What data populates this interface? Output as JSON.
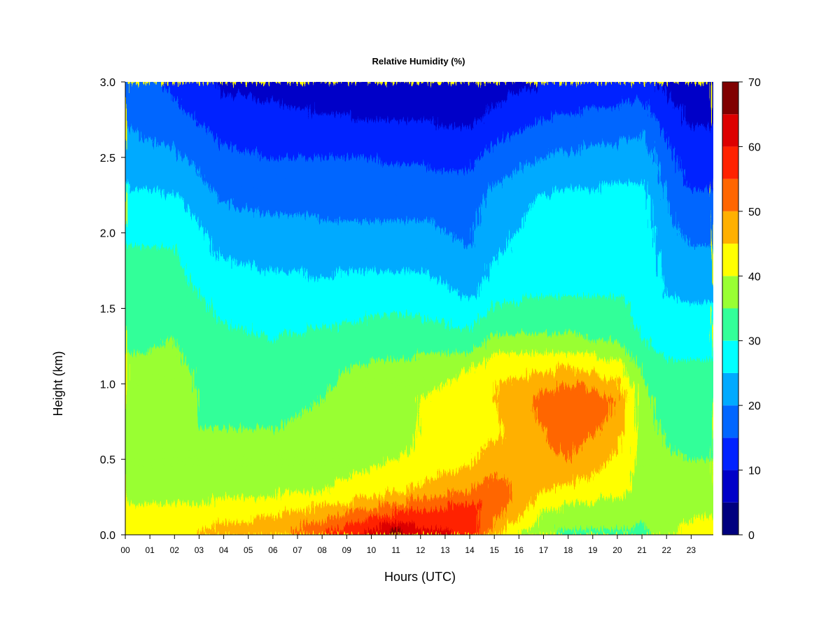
{
  "chart_data": {
    "type": "heatmap",
    "title": "Relative Humidity (%)",
    "xlabel": "Hours (UTC)",
    "ylabel": "Height (km)",
    "x_ticks": [
      "00",
      "01",
      "02",
      "03",
      "04",
      "05",
      "06",
      "07",
      "08",
      "09",
      "10",
      "11",
      "12",
      "13",
      "14",
      "15",
      "16",
      "17",
      "18",
      "19",
      "20",
      "21",
      "22",
      "23"
    ],
    "xlim": [
      0,
      23.9
    ],
    "y_ticks": [
      "0.0",
      "0.5",
      "1.0",
      "1.5",
      "2.0",
      "2.5",
      "3.0"
    ],
    "ylim": [
      0,
      3.0
    ],
    "colorbar": {
      "ticks": [
        "0",
        "10",
        "20",
        "30",
        "40",
        "50",
        "60",
        "70"
      ],
      "range": [
        0,
        70
      ],
      "levels": [
        0,
        5,
        10,
        15,
        20,
        25,
        30,
        35,
        40,
        45,
        50,
        55,
        60,
        65,
        70
      ],
      "colors": [
        "#00007f",
        "#0000c8",
        "#0022ff",
        "#0066ff",
        "#00aaff",
        "#00ffff",
        "#33ff99",
        "#99ff33",
        "#ffff00",
        "#ffb000",
        "#ff6600",
        "#ff2200",
        "#dd0000",
        "#800000"
      ]
    },
    "profile_heights_km": [
      0.0,
      0.1,
      0.2,
      0.3,
      0.5,
      0.7,
      0.9,
      1.1,
      1.3,
      1.6,
      1.9,
      2.2,
      2.5,
      2.8,
      3.0
    ],
    "profiles": [
      {
        "hour": 0,
        "rh": [
          42,
          41,
          40,
          38,
          36,
          35,
          36,
          36,
          34,
          31,
          30,
          27,
          22,
          19,
          18
        ]
      },
      {
        "hour": 2,
        "rh": [
          43,
          42,
          40,
          38,
          36,
          35,
          36,
          36,
          35,
          32,
          30,
          26,
          21,
          16,
          14
        ]
      },
      {
        "hour": 4,
        "rh": [
          48,
          44,
          41,
          38,
          36,
          35,
          34,
          33,
          31,
          28,
          24,
          20,
          16,
          12,
          9
        ]
      },
      {
        "hour": 6,
        "rh": [
          48,
          46,
          42,
          39,
          36,
          35,
          34,
          33,
          30,
          27,
          23,
          19,
          15,
          11,
          8
        ]
      },
      {
        "hour": 8,
        "rh": [
          56,
          50,
          45,
          40,
          38,
          36,
          35,
          34,
          31,
          27,
          22,
          19,
          15,
          10,
          6
        ]
      },
      {
        "hour": 10,
        "rh": [
          62,
          56,
          48,
          42,
          39,
          37,
          37,
          36,
          32,
          28,
          22,
          19,
          15,
          9,
          5
        ]
      },
      {
        "hour": 11,
        "rh": [
          68,
          60,
          50,
          44,
          40,
          38,
          38,
          36,
          32,
          28,
          22,
          19,
          14,
          9,
          5
        ]
      },
      {
        "hour": 12,
        "rh": [
          62,
          57,
          53,
          46,
          41,
          40,
          40,
          38,
          32,
          28,
          22,
          19,
          14,
          9,
          5
        ]
      },
      {
        "hour": 14,
        "rh": [
          60,
          58,
          56,
          50,
          44,
          42,
          42,
          40,
          32,
          24,
          20,
          18,
          14,
          8,
          5
        ]
      },
      {
        "hour": 15,
        "rh": [
          46,
          50,
          54,
          53,
          47,
          44,
          45,
          44,
          36,
          28,
          24,
          22,
          17,
          11,
          7
        ]
      },
      {
        "hour": 17,
        "rh": [
          35,
          38,
          42,
          45,
          48,
          50,
          52,
          44,
          36,
          30,
          28,
          26,
          20,
          14,
          10
        ]
      },
      {
        "hour": 18,
        "rh": [
          34,
          36,
          40,
          44,
          50,
          53,
          55,
          46,
          36,
          30,
          30,
          27,
          21,
          15,
          11
        ]
      },
      {
        "hour": 20,
        "rh": [
          34,
          36,
          38,
          42,
          44,
          48,
          50,
          42,
          34,
          30,
          29,
          27,
          22,
          16,
          12
        ]
      },
      {
        "hour": 21,
        "rh": [
          33,
          36,
          38,
          38,
          38,
          37,
          37,
          34,
          30,
          28,
          28,
          27,
          23,
          17,
          12
        ]
      },
      {
        "hour": 22,
        "rh": [
          38,
          40,
          38,
          37,
          36,
          34,
          33,
          31,
          28,
          25,
          23,
          20,
          17,
          12,
          8
        ]
      },
      {
        "hour": 23,
        "rh": [
          42,
          40,
          38,
          36,
          35,
          33,
          32,
          31,
          28,
          24,
          20,
          16,
          12,
          9,
          7
        ]
      },
      {
        "hour": 23.9,
        "rh": [
          44,
          41,
          38,
          36,
          35,
          33,
          32,
          31,
          28,
          24,
          20,
          16,
          12,
          9,
          7
        ]
      }
    ]
  }
}
